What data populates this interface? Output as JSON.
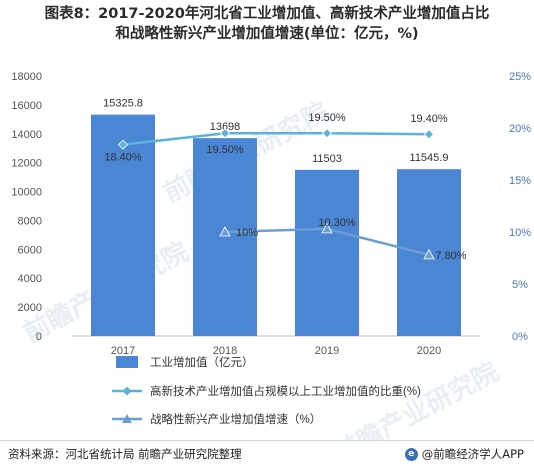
{
  "title_line1": "图表8：2017-2020年河北省工业增加值、高新技术产业增加值占比",
  "title_line2": "和战略性新兴产业增加值增速(单位：亿元，%)",
  "source": "资料来源：河北省统计局 前瞻产业研究院整理",
  "brand": "@前瞻经济学人APP",
  "watermark": "前瞻产业研究院",
  "colors": {
    "bar": "#4a86d4",
    "line1": "#5bb3dc",
    "line2": "#6a9ed4",
    "axis_text": "#555555",
    "right_axis_text": "#4b77b6"
  },
  "chart_data": {
    "type": "bar",
    "categories": [
      "2017",
      "2018",
      "2019",
      "2020"
    ],
    "left_axis": {
      "min": 0,
      "max": 18000,
      "ticks": [
        0,
        2000,
        4000,
        6000,
        8000,
        10000,
        12000,
        14000,
        16000,
        18000
      ]
    },
    "right_axis": {
      "min": 0,
      "max": 25,
      "ticks": [
        "0%",
        "5%",
        "10%",
        "15%",
        "20%",
        "25%"
      ]
    },
    "series": [
      {
        "name": "工业增加值（亿元）",
        "type": "bar",
        "axis": "left",
        "values": [
          15325.8,
          13698,
          11503,
          11545.9
        ],
        "labels": [
          "15325.8",
          "13698",
          "11503",
          "11545.9"
        ]
      },
      {
        "name": "高新技术产业增加值占规模以上工业增加值的比重(%)",
        "type": "line",
        "marker": "diamond",
        "axis": "right",
        "values": [
          18.4,
          19.5,
          19.5,
          19.4
        ],
        "labels": [
          "18.40%",
          "19.50%",
          "19.50%",
          "19.40%"
        ]
      },
      {
        "name": "战略性新兴产业增加值增速（%）",
        "type": "line",
        "marker": "triangle",
        "axis": "right",
        "values": [
          null,
          10,
          10.3,
          7.8
        ],
        "labels": [
          "",
          "10%",
          "10.30%",
          "7.80%"
        ]
      }
    ],
    "legend_position": "bottom",
    "grid": false
  }
}
